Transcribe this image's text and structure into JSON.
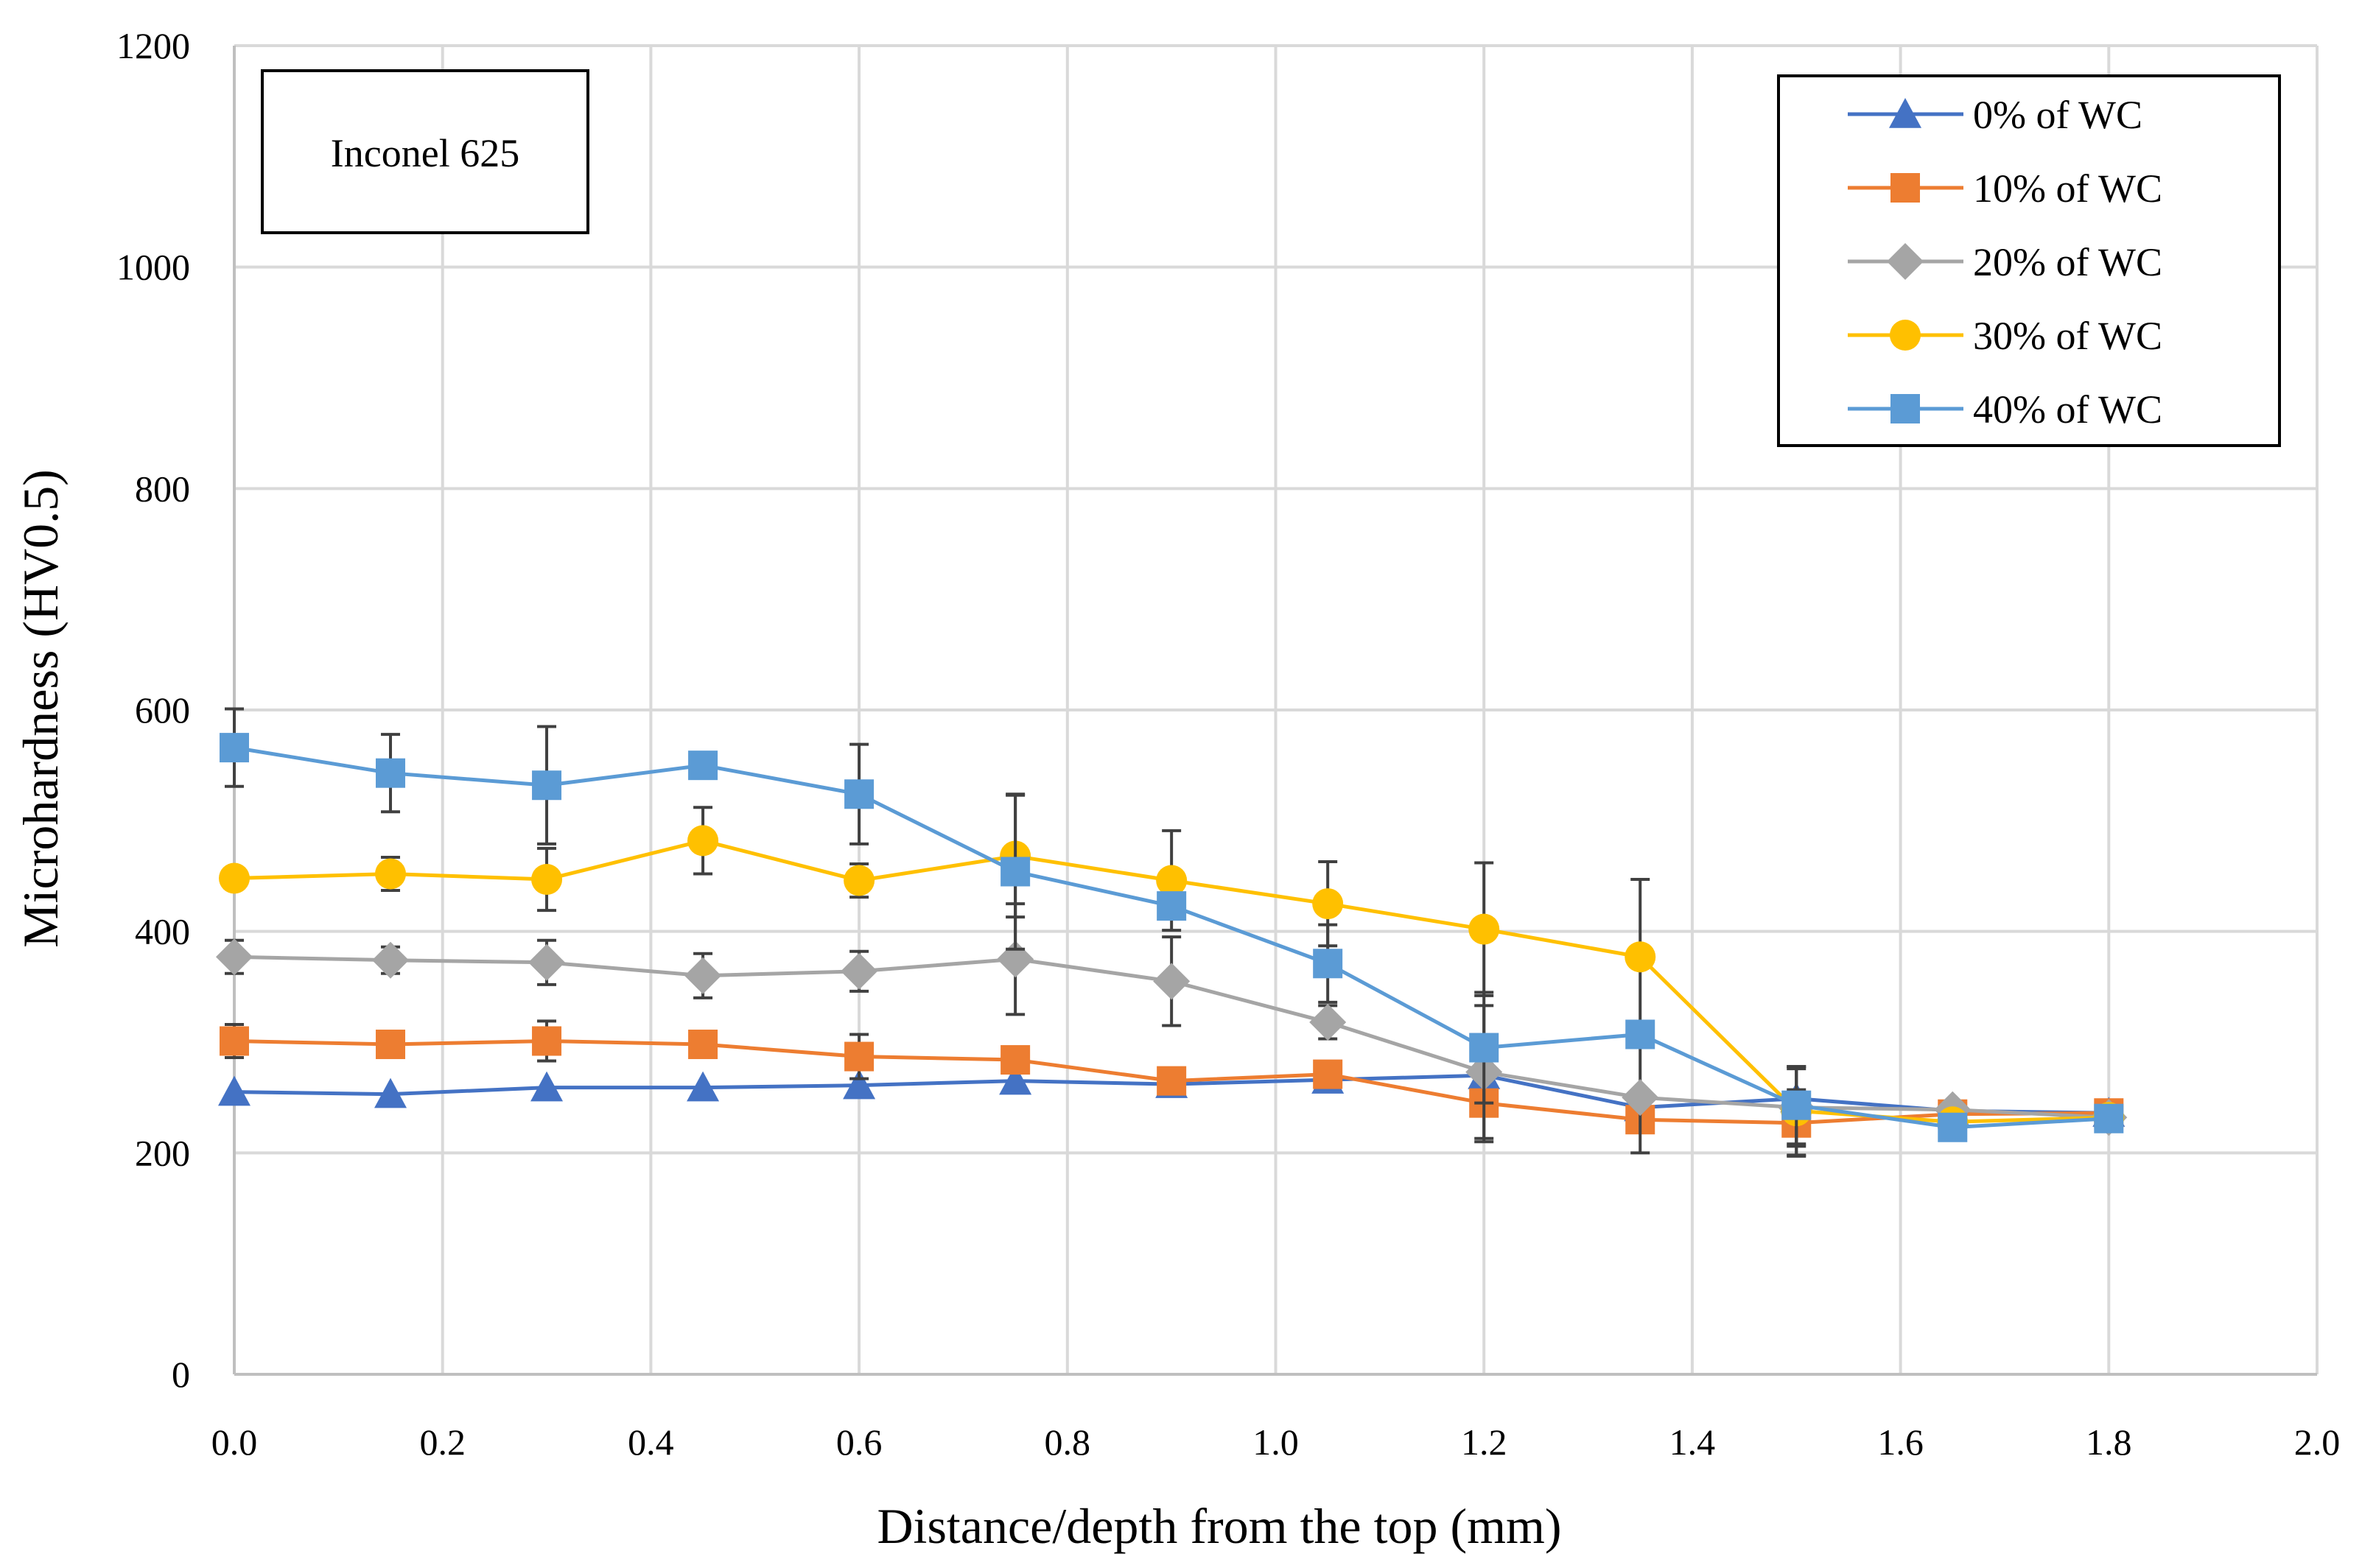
{
  "chart_data": {
    "type": "line",
    "title": "",
    "xlabel": "Distance/depth from the top (mm)",
    "ylabel": "Microhardness (HV0.5)",
    "xlim": [
      0,
      2.0
    ],
    "ylim": [
      0,
      1200
    ],
    "x_ticks": [
      "0.0",
      "0.2",
      "0.4",
      "0.6",
      "0.8",
      "1.0",
      "1.2",
      "1.4",
      "1.6",
      "1.8",
      "2.0"
    ],
    "y_ticks": [
      "0",
      "200",
      "400",
      "600",
      "800",
      "1000",
      "1200"
    ],
    "grid": true,
    "legend_position": "top-right",
    "annotation": "Inconel 625",
    "x": [
      0.0,
      0.15,
      0.3,
      0.45,
      0.6,
      0.75,
      0.9,
      1.05,
      1.2,
      1.35,
      1.5,
      1.65,
      1.8
    ],
    "series": [
      {
        "name": "0% of WC",
        "marker": "triangle",
        "color": "#4472C4",
        "values": [
          255,
          253,
          259,
          259,
          261,
          265,
          262,
          266,
          270,
          241,
          249,
          238,
          236
        ],
        "errors": [
          0,
          0,
          0,
          0,
          0,
          0,
          0,
          0,
          0,
          0,
          0,
          0,
          0
        ]
      },
      {
        "name": "10% of WC",
        "marker": "square",
        "color": "#ED7D31",
        "values": [
          301,
          298,
          301,
          298,
          287,
          284,
          265,
          271,
          245,
          230,
          227,
          235,
          236
        ],
        "errors": [
          15,
          0,
          18,
          0,
          20,
          0,
          0,
          0,
          35,
          0,
          30,
          0,
          0
        ]
      },
      {
        "name": "20% of WC",
        "marker": "diamond",
        "color": "#A5A5A5",
        "values": [
          377,
          374,
          372,
          360,
          364,
          375,
          355,
          318,
          273,
          250,
          241,
          239,
          232
        ],
        "errors": [
          15,
          12,
          20,
          20,
          18,
          50,
          40,
          15,
          60,
          50,
          35,
          0,
          0
        ]
      },
      {
        "name": "30% of WC",
        "marker": "circle",
        "color": "#FFC000",
        "values": [
          448,
          452,
          447,
          482,
          446,
          468,
          446,
          425,
          402,
          377,
          238,
          228,
          232
        ],
        "errors": [
          0,
          15,
          28,
          30,
          15,
          55,
          45,
          38,
          60,
          70,
          40,
          0,
          0
        ]
      },
      {
        "name": "40% of WC",
        "marker": "square",
        "color": "#5B9BD5",
        "values": [
          566,
          543,
          532,
          550,
          524,
          454,
          423,
          371,
          295,
          307,
          243,
          223,
          231
        ],
        "errors": [
          35,
          35,
          53,
          0,
          45,
          70,
          0,
          35,
          50,
          0,
          35,
          0,
          0
        ]
      }
    ]
  }
}
